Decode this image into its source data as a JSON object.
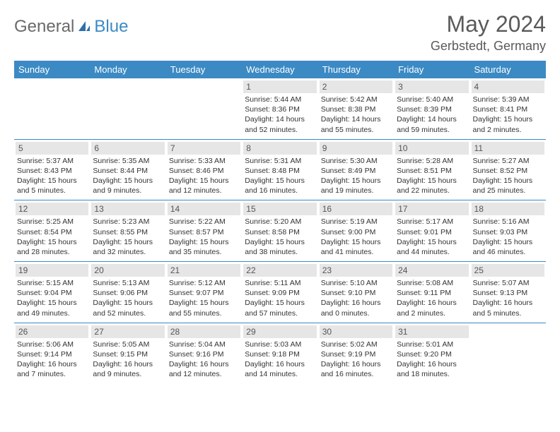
{
  "brand": {
    "text1": "General",
    "text2": "Blue"
  },
  "title": "May 2024",
  "location": "Gerbstedt, Germany",
  "colors": {
    "header_bg": "#3b8ac4",
    "header_text": "#ffffff",
    "daynum_bg": "#e6e6e6",
    "rule": "#3b8ac4",
    "text": "#333333",
    "logo_gray": "#6a6a6a",
    "logo_blue": "#3b8ac4",
    "title_color": "#5a5a5a"
  },
  "weekdays": [
    "Sunday",
    "Monday",
    "Tuesday",
    "Wednesday",
    "Thursday",
    "Friday",
    "Saturday"
  ],
  "weeks": [
    [
      null,
      null,
      null,
      {
        "d": "1",
        "sr": "5:44 AM",
        "ss": "8:36 PM",
        "dl": "14 hours and 52 minutes."
      },
      {
        "d": "2",
        "sr": "5:42 AM",
        "ss": "8:38 PM",
        "dl": "14 hours and 55 minutes."
      },
      {
        "d": "3",
        "sr": "5:40 AM",
        "ss": "8:39 PM",
        "dl": "14 hours and 59 minutes."
      },
      {
        "d": "4",
        "sr": "5:39 AM",
        "ss": "8:41 PM",
        "dl": "15 hours and 2 minutes."
      }
    ],
    [
      {
        "d": "5",
        "sr": "5:37 AM",
        "ss": "8:43 PM",
        "dl": "15 hours and 5 minutes."
      },
      {
        "d": "6",
        "sr": "5:35 AM",
        "ss": "8:44 PM",
        "dl": "15 hours and 9 minutes."
      },
      {
        "d": "7",
        "sr": "5:33 AM",
        "ss": "8:46 PM",
        "dl": "15 hours and 12 minutes."
      },
      {
        "d": "8",
        "sr": "5:31 AM",
        "ss": "8:48 PM",
        "dl": "15 hours and 16 minutes."
      },
      {
        "d": "9",
        "sr": "5:30 AM",
        "ss": "8:49 PM",
        "dl": "15 hours and 19 minutes."
      },
      {
        "d": "10",
        "sr": "5:28 AM",
        "ss": "8:51 PM",
        "dl": "15 hours and 22 minutes."
      },
      {
        "d": "11",
        "sr": "5:27 AM",
        "ss": "8:52 PM",
        "dl": "15 hours and 25 minutes."
      }
    ],
    [
      {
        "d": "12",
        "sr": "5:25 AM",
        "ss": "8:54 PM",
        "dl": "15 hours and 28 minutes."
      },
      {
        "d": "13",
        "sr": "5:23 AM",
        "ss": "8:55 PM",
        "dl": "15 hours and 32 minutes."
      },
      {
        "d": "14",
        "sr": "5:22 AM",
        "ss": "8:57 PM",
        "dl": "15 hours and 35 minutes."
      },
      {
        "d": "15",
        "sr": "5:20 AM",
        "ss": "8:58 PM",
        "dl": "15 hours and 38 minutes."
      },
      {
        "d": "16",
        "sr": "5:19 AM",
        "ss": "9:00 PM",
        "dl": "15 hours and 41 minutes."
      },
      {
        "d": "17",
        "sr": "5:17 AM",
        "ss": "9:01 PM",
        "dl": "15 hours and 44 minutes."
      },
      {
        "d": "18",
        "sr": "5:16 AM",
        "ss": "9:03 PM",
        "dl": "15 hours and 46 minutes."
      }
    ],
    [
      {
        "d": "19",
        "sr": "5:15 AM",
        "ss": "9:04 PM",
        "dl": "15 hours and 49 minutes."
      },
      {
        "d": "20",
        "sr": "5:13 AM",
        "ss": "9:06 PM",
        "dl": "15 hours and 52 minutes."
      },
      {
        "d": "21",
        "sr": "5:12 AM",
        "ss": "9:07 PM",
        "dl": "15 hours and 55 minutes."
      },
      {
        "d": "22",
        "sr": "5:11 AM",
        "ss": "9:09 PM",
        "dl": "15 hours and 57 minutes."
      },
      {
        "d": "23",
        "sr": "5:10 AM",
        "ss": "9:10 PM",
        "dl": "16 hours and 0 minutes."
      },
      {
        "d": "24",
        "sr": "5:08 AM",
        "ss": "9:11 PM",
        "dl": "16 hours and 2 minutes."
      },
      {
        "d": "25",
        "sr": "5:07 AM",
        "ss": "9:13 PM",
        "dl": "16 hours and 5 minutes."
      }
    ],
    [
      {
        "d": "26",
        "sr": "5:06 AM",
        "ss": "9:14 PM",
        "dl": "16 hours and 7 minutes."
      },
      {
        "d": "27",
        "sr": "5:05 AM",
        "ss": "9:15 PM",
        "dl": "16 hours and 9 minutes."
      },
      {
        "d": "28",
        "sr": "5:04 AM",
        "ss": "9:16 PM",
        "dl": "16 hours and 12 minutes."
      },
      {
        "d": "29",
        "sr": "5:03 AM",
        "ss": "9:18 PM",
        "dl": "16 hours and 14 minutes."
      },
      {
        "d": "30",
        "sr": "5:02 AM",
        "ss": "9:19 PM",
        "dl": "16 hours and 16 minutes."
      },
      {
        "d": "31",
        "sr": "5:01 AM",
        "ss": "9:20 PM",
        "dl": "16 hours and 18 minutes."
      },
      null
    ]
  ],
  "labels": {
    "sunrise": "Sunrise:",
    "sunset": "Sunset:",
    "daylight": "Daylight:"
  }
}
